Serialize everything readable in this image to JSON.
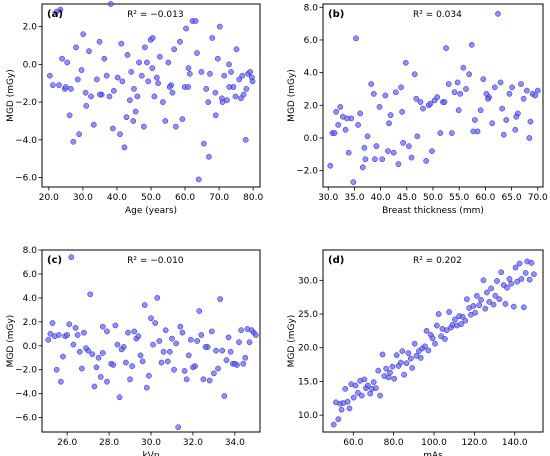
{
  "figure": {
    "point_fill": "#6464f0",
    "point_stroke": "#1f1fd0",
    "axis_color": "#000000"
  },
  "chart_data": [
    {
      "type": "scatter",
      "panel": "(a)",
      "annotation": "R² = −0.013",
      "xlabel": "Age (years)",
      "ylabel": "MGD (mGy)",
      "xlim": [
        18.0,
        82.0
      ],
      "ylim": [
        -6.5,
        3.2
      ],
      "xticks": [
        20.0,
        30.0,
        40.0,
        50.0,
        60.0,
        70.0,
        80.0
      ],
      "yticks": [
        -6.0,
        -4.0,
        -2.0,
        0.0,
        2.0
      ],
      "x": [
        20.3,
        21.2,
        22.3,
        23.4,
        23.9,
        24.7,
        25.4,
        26.1,
        27.2,
        28.0,
        28.9,
        29.6,
        30.1,
        31.0,
        31.8,
        32.4,
        33.2,
        34.1,
        34.9,
        35.5,
        36.3,
        37.0,
        37.8,
        38.2,
        39.1,
        40.2,
        40.9,
        41.3,
        41.6,
        42.2,
        43.1,
        43.8,
        44.2,
        44.8,
        45.5,
        46.0,
        46.5,
        47.3,
        47.9,
        48.2,
        48.8,
        49.2,
        49.9,
        50.4,
        51.0,
        51.7,
        52.1,
        52.6,
        53.5,
        54.2,
        55.1,
        55.9,
        56.3,
        56.8,
        57.3,
        58.5,
        59.2,
        59.9,
        60.3,
        60.9,
        61.4,
        62.2,
        63.1,
        64.0,
        64.8,
        65.5,
        66.2,
        66.8,
        67.3,
        68.0,
        68.9,
        69.6,
        70.2,
        70.8,
        71.5,
        72.3,
        72.9,
        73.5,
        74.2,
        75.1,
        75.9,
        76.4,
        77.2,
        77.8,
        78.5,
        79.1,
        79.6,
        23.0,
        25.0,
        26.5,
        28.5,
        30.8,
        35.0,
        38.8,
        42.8,
        45.0,
        50.5,
        55.5,
        61.0,
        63.5,
        67.0,
        69.0,
        71.0,
        73.0,
        74.8,
        76.8,
        78.0,
        79.8
      ],
      "y": [
        -0.6,
        -1.1,
        2.8,
        2.9,
        0.3,
        -1.3,
        0.1,
        -2.7,
        -4.1,
        0.9,
        -3.7,
        -0.3,
        1.6,
        -2.2,
        0.7,
        -1.7,
        -3.2,
        -0.8,
        1.2,
        -1.6,
        0.3,
        -0.6,
        -1.7,
        3.2,
        -1.4,
        -0.7,
        -3.7,
        1.1,
        -0.9,
        -4.4,
        0.5,
        -1.9,
        -0.4,
        -3.0,
        -2.5,
        -1.7,
        0.1,
        -0.6,
        -3.3,
        0.9,
        0.1,
        -0.9,
        1.3,
        -0.2,
        -1.7,
        -0.7,
        -1.0,
        0.4,
        -2.0,
        -3.0,
        0.1,
        -1.1,
        -1.5,
        0.8,
        -3.3,
        1.2,
        -2.9,
        -1.2,
        1.9,
        -1.2,
        -0.5,
        2.3,
        2.3,
        -6.1,
        -0.4,
        -4.2,
        -1.3,
        -2.0,
        -0.5,
        1.4,
        -1.5,
        0.3,
        2.0,
        -1.8,
        -0.6,
        -1.9,
        0.0,
        -0.4,
        -1.2,
        0.8,
        -0.8,
        -1.8,
        -1.6,
        -4.0,
        -0.5,
        -0.4,
        -0.7,
        -1.1,
        -1.2,
        -1.3,
        -0.8,
        -1.5,
        -1.6,
        -3.4,
        -2.8,
        -1.3,
        1.4,
        -1.2,
        -0.2,
        0.6,
        -4.9,
        -2.7,
        -2.0,
        -1.2,
        -1.7,
        -0.6,
        -1.3,
        -0.9
      ],
      "title": ""
    },
    {
      "type": "scatter",
      "panel": "(b)",
      "annotation": "R² = 0.034",
      "xlabel": "Breast thickness (mm)",
      "ylabel": "MGD (mGy)",
      "xlim": [
        29.0,
        71.0
      ],
      "ylim": [
        -3.0,
        8.2
      ],
      "xticks": [
        30.0,
        35.0,
        40.0,
        45.0,
        50.0,
        55.0,
        60.0,
        65.0,
        70.0
      ],
      "yticks": [
        -2.0,
        0.0,
        2.0,
        4.0,
        6.0,
        8.0
      ],
      "x": [
        30.4,
        30.8,
        31.2,
        31.9,
        32.3,
        32.8,
        33.3,
        33.9,
        34.4,
        34.8,
        35.3,
        35.7,
        36.1,
        36.6,
        37.1,
        37.5,
        38.2,
        38.7,
        39.2,
        39.8,
        40.3,
        40.9,
        41.4,
        41.9,
        42.5,
        42.9,
        43.4,
        43.9,
        44.3,
        44.8,
        45.4,
        45.9,
        46.5,
        47.0,
        47.6,
        48.1,
        48.7,
        49.2,
        49.8,
        50.3,
        50.8,
        51.4,
        51.9,
        52.5,
        53.0,
        53.6,
        54.1,
        54.7,
        55.2,
        55.8,
        56.3,
        56.9,
        57.4,
        58.0,
        58.5,
        59.1,
        59.6,
        60.2,
        60.7,
        61.3,
        61.8,
        62.4,
        62.9,
        63.5,
        64.0,
        64.6,
        65.1,
        65.7,
        66.2,
        66.8,
        67.3,
        67.9,
        68.4,
        69.0,
        69.5,
        70.0,
        31.5,
        33.6,
        36.9,
        38.9,
        41.6,
        44.1,
        46.8,
        49.5,
        52.2,
        54.9,
        57.7,
        60.5,
        63.2,
        65.9,
        68.6
      ],
      "y": [
        -1.7,
        0.3,
        0.3,
        0.8,
        1.9,
        1.3,
        0.5,
        -0.9,
        1.2,
        -2.7,
        6.1,
        0.8,
        1.5,
        -1.8,
        -1.3,
        0.1,
        3.3,
        2.7,
        -0.5,
        1.9,
        -1.3,
        2.6,
        -0.8,
        1.4,
        -0.9,
        2.8,
        -1.6,
        3.1,
        -0.3,
        4.6,
        -0.5,
        -1.2,
        3.9,
        0.1,
        2.2,
        1.8,
        -1.4,
        2.0,
        -0.8,
        2.3,
        2.5,
        0.3,
        2.2,
        5.5,
        3.3,
        0.3,
        2.8,
        3.4,
        2.7,
        4.3,
        3.0,
        3.9,
        5.7,
        1.1,
        0.4,
        1.7,
        3.6,
        2.7,
        2.5,
        0.9,
        3.1,
        7.6,
        3.4,
        0.2,
        1.1,
        2.7,
        3.1,
        0.5,
        1.5,
        3.3,
        2.4,
        2.9,
        0.0,
        2.7,
        2.6,
        2.9,
        1.6,
        1.2,
        -0.6,
        -1.3,
        0.9,
        1.6,
        2.4,
        2.1,
        2.2,
        1.7,
        0.4,
        2.4,
        1.8,
        1.3,
        1.0
      ],
      "title": ""
    },
    {
      "type": "scatter",
      "panel": "(c)",
      "annotation": "R² = −0.010",
      "xlabel": "kVp",
      "ylabel": "MGD (mGy)",
      "xlim": [
        24.8,
        35.2
      ],
      "ylim": [
        -7.2,
        8.0
      ],
      "xticks": [
        26.0,
        28.0,
        30.0,
        32.0,
        34.0
      ],
      "yticks": [
        -6.0,
        -4.0,
        -2.0,
        0.0,
        2.0,
        4.0,
        6.0,
        8.0
      ],
      "x": [
        25.1,
        25.3,
        25.5,
        25.7,
        25.9,
        26.0,
        26.2,
        26.4,
        26.6,
        26.8,
        27.0,
        27.1,
        27.3,
        27.5,
        27.7,
        27.9,
        28.1,
        28.3,
        28.5,
        28.7,
        28.9,
        29.1,
        29.3,
        29.5,
        29.7,
        29.9,
        30.1,
        30.3,
        30.5,
        30.7,
        30.9,
        31.1,
        31.3,
        31.5,
        31.7,
        31.9,
        32.1,
        32.3,
        32.5,
        32.7,
        32.9,
        33.1,
        33.3,
        33.5,
        33.7,
        33.9,
        34.1,
        34.3,
        34.5,
        34.7,
        34.9,
        25.4,
        26.5,
        27.6,
        28.6,
        29.6,
        30.6,
        31.6,
        32.6,
        33.6,
        34.6,
        25.8,
        26.9,
        27.9,
        29.0,
        30.0,
        31.0,
        32.0,
        33.0,
        34.0,
        35.0,
        26.1,
        27.2,
        28.2,
        29.2,
        30.2,
        31.2,
        32.2,
        33.2,
        34.2,
        25.6,
        26.7,
        27.7,
        28.8,
        29.8,
        30.8,
        31.8,
        32.8,
        33.8,
        34.8,
        25.2,
        26.3,
        27.4,
        28.4,
        29.4,
        30.4,
        31.4,
        32.4,
        33.4,
        34.4
      ],
      "y": [
        0.5,
        1.9,
        -2.0,
        -3.0,
        0.8,
        0.9,
        7.4,
        1.5,
        -0.5,
        1.1,
        -0.4,
        4.3,
        -3.4,
        -1.0,
        1.6,
        -3.0,
        -1.5,
        1.7,
        -4.3,
        -0.1,
        1.1,
        -1.7,
        0.6,
        -0.8,
        3.4,
        -2.5,
        0.1,
        4.0,
        -1.4,
        1.3,
        -0.5,
        -2.0,
        -6.8,
        1.1,
        -2.8,
        0.5,
        -1.7,
        2.9,
        -2.8,
        -0.1,
        1.2,
        -0.4,
        3.9,
        -4.2,
        0.7,
        -1.5,
        -1.6,
        1.3,
        -1.0,
        0.3,
        1.1,
        0.8,
        0.9,
        -2.6,
        -0.3,
        -1.3,
        -0.5,
        -2.1,
        -0.1,
        -1.2,
        1.4,
        -0.9,
        -0.2,
        1.2,
        -2.8,
        2.3,
        0.6,
        -1.8,
        -2.3,
        -1.5,
        0.9,
        1.8,
        -0.7,
        -1.6,
        1.2,
        1.9,
        0.2,
        0.4,
        -1.9,
        0.3,
        0.9,
        -1.9,
        -0.6,
        -1.4,
        -3.5,
        -1.3,
        -0.8,
        -2.9,
        -0.5,
        1.3,
        1.0,
        0.1,
        -1.8,
        0.1,
        0.8,
        0.4,
        1.6,
        0.9,
        -0.4,
        -1.5
      ],
      "title": ""
    },
    {
      "type": "scatter",
      "panel": "(d)",
      "annotation": "R² = 0.202",
      "xlabel": "mAs",
      "ylabel": "MGD (mGy)",
      "xlim": [
        45.0,
        154.0
      ],
      "ylim": [
        7.5,
        34.5
      ],
      "xticks": [
        60.0,
        80.0,
        100.0,
        120.0,
        140.0
      ],
      "yticks": [
        10.0,
        15.0,
        20.0,
        25.0,
        30.0
      ],
      "x": [
        50.3,
        51.4,
        52.6,
        53.5,
        54.2,
        55.1,
        56.0,
        57.2,
        58.1,
        59.0,
        60.2,
        61.1,
        62.3,
        63.4,
        64.2,
        65.5,
        66.3,
        67.2,
        68.4,
        69.3,
        70.1,
        71.2,
        72.4,
        73.3,
        74.5,
        75.4,
        76.3,
        77.5,
        78.2,
        79.4,
        80.3,
        81.5,
        82.4,
        83.6,
        84.3,
        85.2,
        86.4,
        87.3,
        88.5,
        89.2,
        90.4,
        91.3,
        92.5,
        93.4,
        94.2,
        95.5,
        96.3,
        97.2,
        98.4,
        99.3,
        100.5,
        101.4,
        102.3,
        103.5,
        104.2,
        105.4,
        106.3,
        107.5,
        108.4,
        109.2,
        110.4,
        111.3,
        112.5,
        113.4,
        114.2,
        115.5,
        116.3,
        117.4,
        118.3,
        119.5,
        120.4,
        121.2,
        122.4,
        123.3,
        124.5,
        125.4,
        126.2,
        127.4,
        128.3,
        129.5,
        130.4,
        131.2,
        132.4,
        133.3,
        134.5,
        135.4,
        136.2,
        137.4,
        138.3,
        139.5,
        140.4,
        141.2,
        142.4,
        143.3,
        144.5,
        145.4,
        146.2,
        147.4,
        148.3,
        149.5
      ],
      "y": [
        8.6,
        11.9,
        9.4,
        11.7,
        10.8,
        11.8,
        13.9,
        12.0,
        11.0,
        14.6,
        12.6,
        14.4,
        13.3,
        15.1,
        12.9,
        15.3,
        14.0,
        14.4,
        13.2,
        13.9,
        14.9,
        14.0,
        16.6,
        12.9,
        19.0,
        15.8,
        16.9,
        15.6,
        16.3,
        17.2,
        15.4,
        18.9,
        17.3,
        17.8,
        19.5,
        16.0,
        17.7,
        19.2,
        18.4,
        17.0,
        20.6,
        18.8,
        19.5,
        18.5,
        19.9,
        20.2,
        22.5,
        19.6,
        21.9,
        21.4,
        20.6,
        23.3,
        25.0,
        21.7,
        22.8,
        21.3,
        22.6,
        25.3,
        23.0,
        23.4,
        24.2,
        23.3,
        24.7,
        23.5,
        24.6,
        24.0,
        27.2,
        25.9,
        24.9,
        26.2,
        25.2,
        27.7,
        26.3,
        27.1,
        30.0,
        25.8,
        28.2,
        26.8,
        28.8,
        26.4,
        27.7,
        29.9,
        27.2,
        31.2,
        29.3,
        26.5,
        28.9,
        30.2,
        29.5,
        26.1,
        31.9,
        29.8,
        32.5,
        30.2,
        26.0,
        31.1,
        32.8,
        30.1,
        32.6,
        30.9
      ],
      "title": ""
    }
  ]
}
